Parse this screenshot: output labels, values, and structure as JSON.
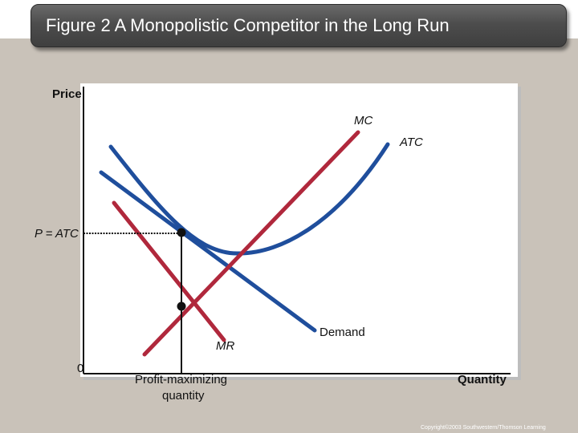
{
  "title": "Figure 2 A Monopolistic Competitor in the Long Run",
  "axes": {
    "y_label": "Price",
    "x_label": "Quantity",
    "origin_label": "0"
  },
  "curves": [
    {
      "name": "MC",
      "color": "#b0283c"
    },
    {
      "name": "ATC",
      "color": "#1f4e9c"
    },
    {
      "name": "Demand",
      "color": "#1f4e9c"
    },
    {
      "name": "MR",
      "color": "#b0283c"
    }
  ],
  "labels": {
    "mc": "MC",
    "atc": "ATC",
    "demand": "Demand",
    "mr": "MR",
    "price_level": "P = ATC",
    "quantity_line1": "Profit-maximizing",
    "quantity_line2": "quantity"
  },
  "copyright": "Copyright©2003 Southwestern/Thomson Learning"
}
